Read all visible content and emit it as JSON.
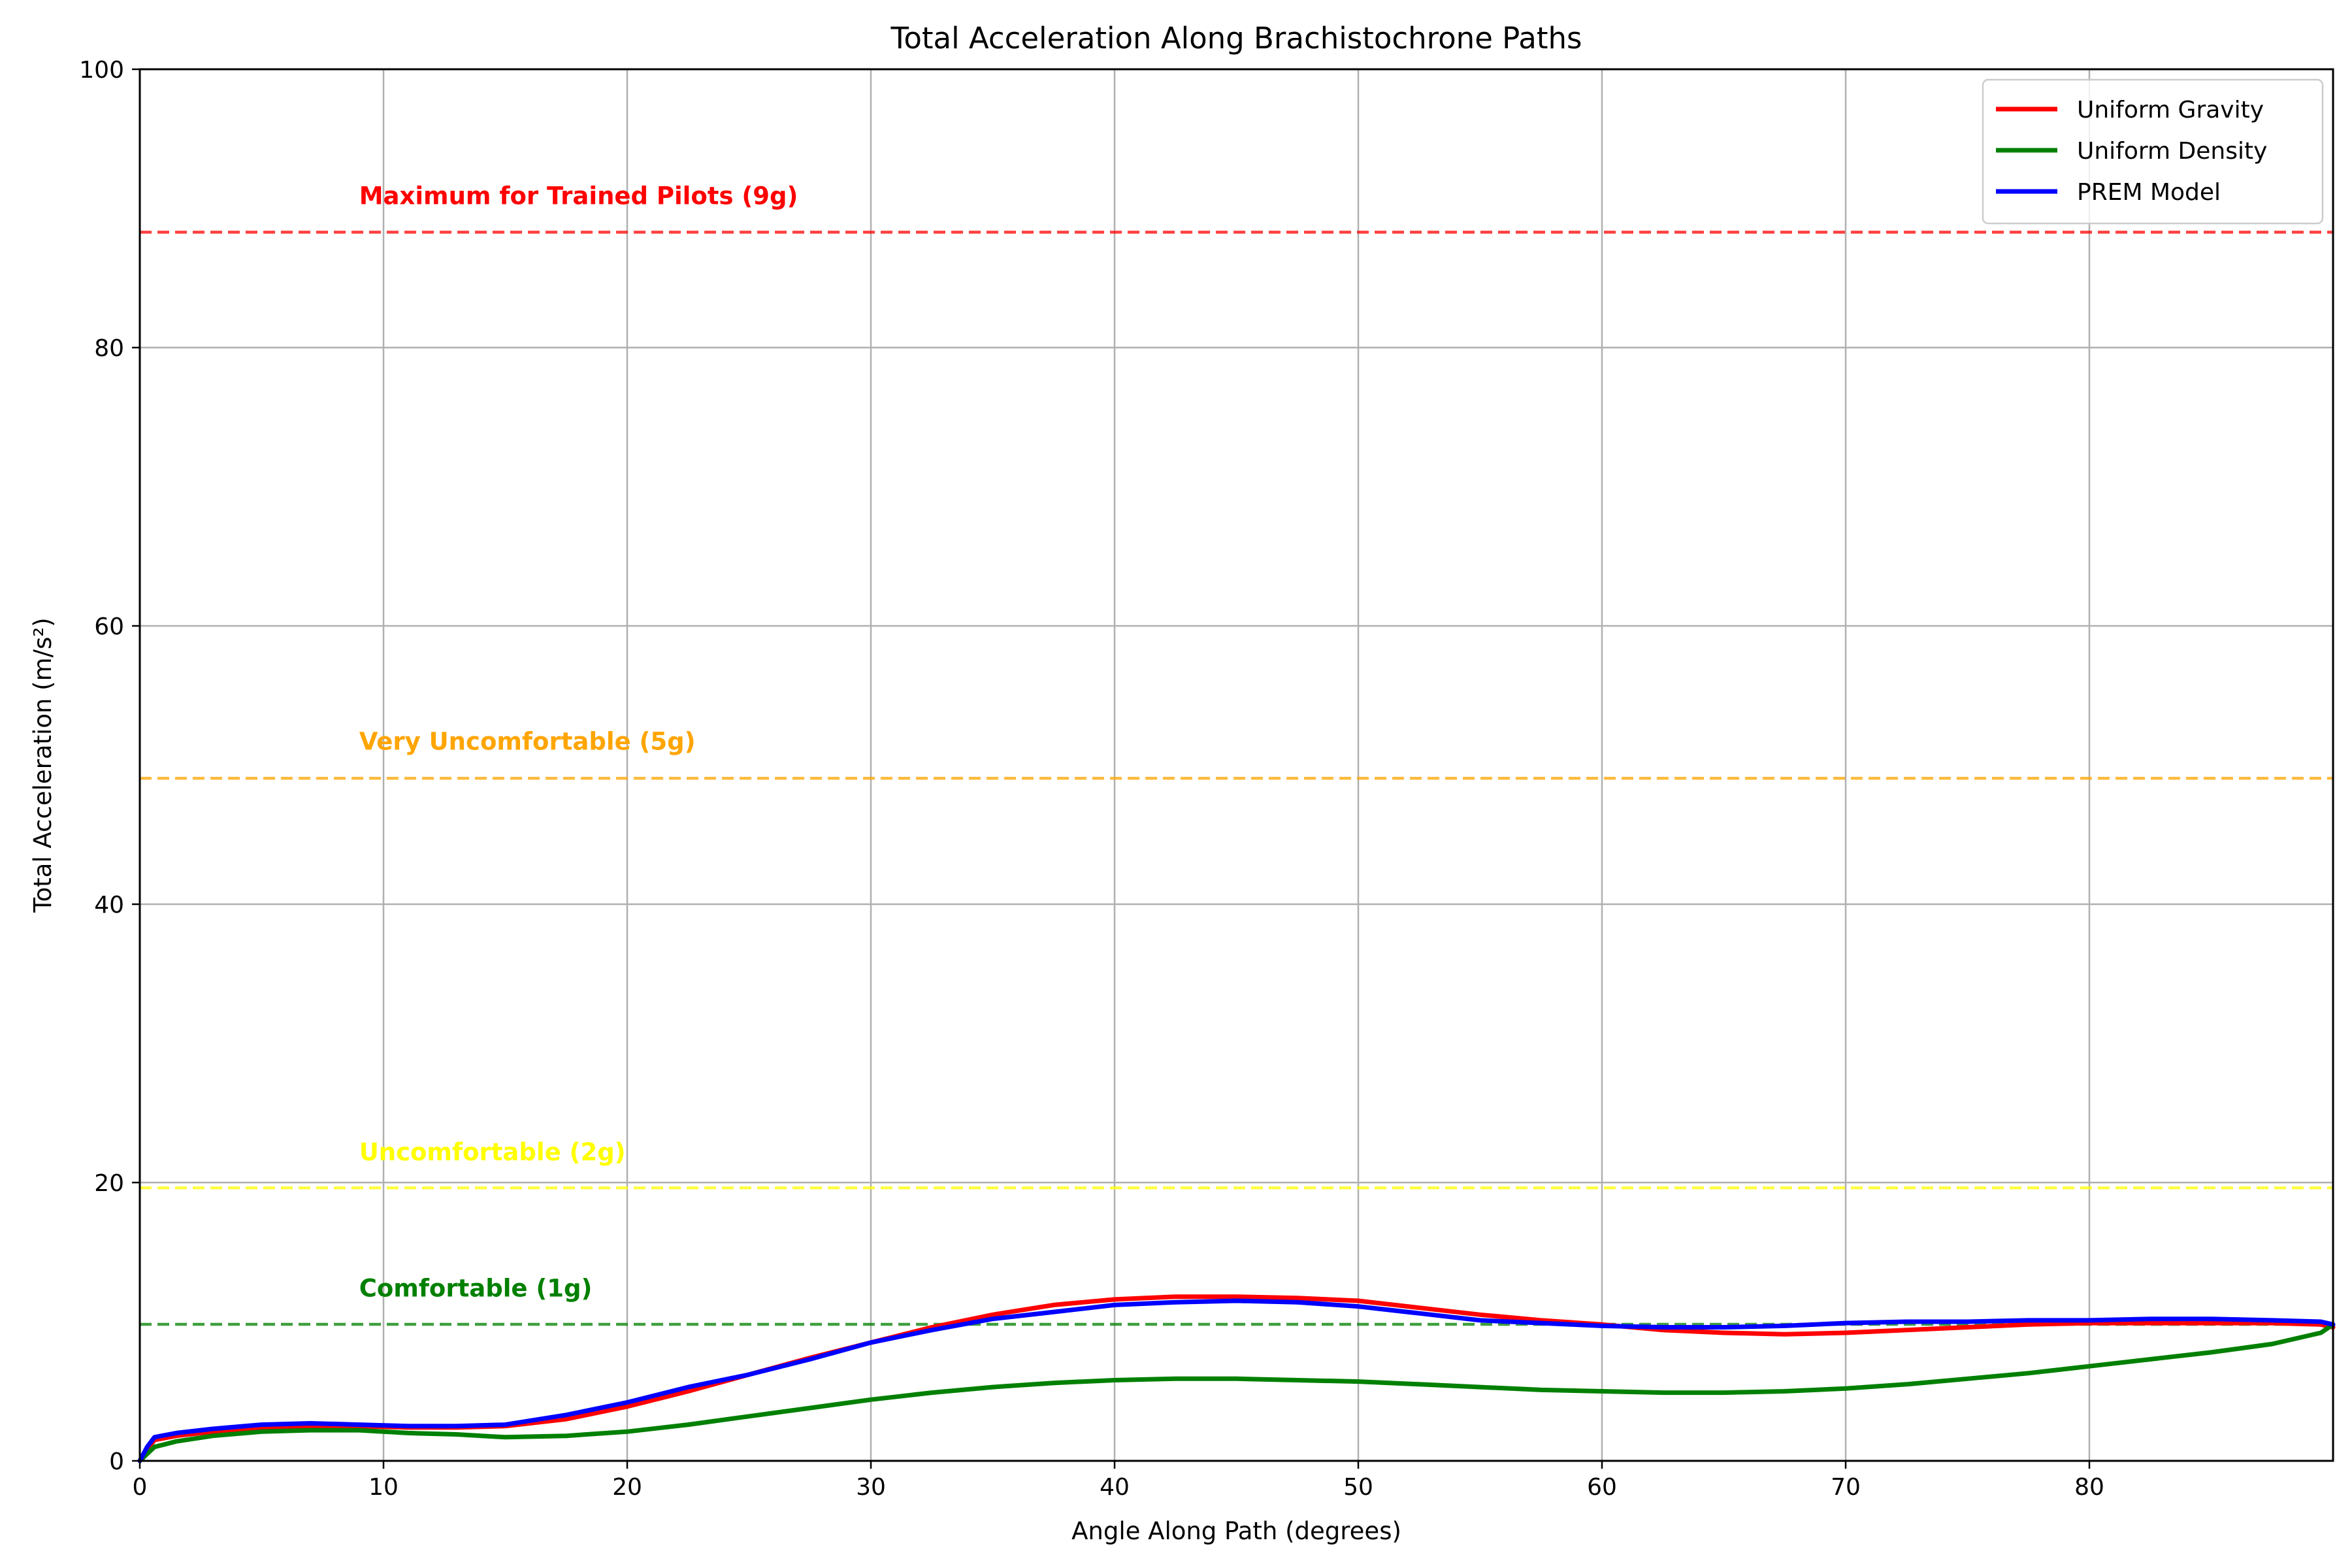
{
  "chart_data": {
    "type": "line",
    "title": "Total Acceleration Along Brachistochrone Paths",
    "xlabel": "Angle Along Path (degrees)",
    "ylabel": "Total Acceleration (m/s²)",
    "xlim": [
      0,
      90
    ],
    "ylim": [
      0,
      100
    ],
    "xticks": [
      0,
      10,
      20,
      30,
      40,
      50,
      60,
      70,
      80
    ],
    "yticks": [
      0,
      20,
      40,
      60,
      80,
      100
    ],
    "grid": true,
    "legend_position": "top-right",
    "series": [
      {
        "name": "Uniform Gravity",
        "color": "#ff0000",
        "x": [
          0,
          0.3,
          0.6,
          1.5,
          3,
          5,
          7,
          9,
          11,
          13,
          15,
          17.5,
          20,
          22.5,
          25,
          27.5,
          30,
          32.5,
          35,
          37.5,
          40,
          42.5,
          45,
          47.5,
          50,
          52.5,
          55,
          57.5,
          60,
          62.5,
          65,
          67.5,
          70,
          72.5,
          75,
          77.5,
          80,
          82.5,
          85,
          87.5,
          89.5,
          90
        ],
        "y": [
          0,
          0.8,
          1.5,
          1.8,
          2.1,
          2.4,
          2.5,
          2.5,
          2.4,
          2.4,
          2.5,
          3.0,
          3.9,
          5.0,
          6.2,
          7.4,
          8.5,
          9.6,
          10.5,
          11.2,
          11.6,
          11.8,
          11.8,
          11.7,
          11.5,
          11.0,
          10.5,
          10.1,
          9.8,
          9.4,
          9.2,
          9.1,
          9.2,
          9.4,
          9.6,
          9.8,
          9.9,
          9.9,
          9.9,
          9.9,
          9.8,
          9.6
        ]
      },
      {
        "name": "Uniform Density",
        "color": "#008000",
        "x": [
          0,
          0.3,
          0.6,
          1.5,
          3,
          5,
          7,
          9,
          11,
          13,
          15,
          17.5,
          20,
          22.5,
          25,
          27.5,
          30,
          32.5,
          35,
          37.5,
          40,
          42.5,
          45,
          47.5,
          50,
          52.5,
          55,
          57.5,
          60,
          62.5,
          65,
          67.5,
          70,
          72.5,
          75,
          77.5,
          80,
          82.5,
          85,
          87.5,
          89.5,
          90
        ],
        "y": [
          0,
          0.5,
          1.0,
          1.4,
          1.8,
          2.1,
          2.2,
          2.2,
          2.0,
          1.9,
          1.7,
          1.8,
          2.1,
          2.6,
          3.2,
          3.8,
          4.4,
          4.9,
          5.3,
          5.6,
          5.8,
          5.9,
          5.9,
          5.8,
          5.7,
          5.5,
          5.3,
          5.1,
          5.0,
          4.9,
          4.9,
          5.0,
          5.2,
          5.5,
          5.9,
          6.3,
          6.8,
          7.3,
          7.8,
          8.4,
          9.2,
          9.8
        ]
      },
      {
        "name": "PREM Model",
        "color": "#0000ff",
        "x": [
          0,
          0.3,
          0.6,
          1.5,
          3,
          5,
          7,
          9,
          11,
          13,
          15,
          17.5,
          20,
          22.5,
          25,
          27.5,
          30,
          32.5,
          35,
          37.5,
          40,
          42.5,
          45,
          47.5,
          50,
          52.5,
          55,
          57.5,
          60,
          62.5,
          65,
          67.5,
          70,
          72.5,
          75,
          77.5,
          80,
          82.5,
          85,
          87.5,
          89.5,
          90
        ],
        "y": [
          0,
          1.0,
          1.7,
          2.0,
          2.3,
          2.6,
          2.7,
          2.6,
          2.5,
          2.5,
          2.6,
          3.3,
          4.2,
          5.3,
          6.2,
          7.3,
          8.5,
          9.4,
          10.2,
          10.7,
          11.2,
          11.4,
          11.5,
          11.4,
          11.1,
          10.6,
          10.1,
          9.9,
          9.7,
          9.6,
          9.6,
          9.7,
          9.9,
          10.0,
          10.0,
          10.1,
          10.1,
          10.2,
          10.2,
          10.1,
          10.0,
          9.8
        ]
      }
    ],
    "reference_lines": [
      {
        "label": "Maximum for Trained Pilots (9g)",
        "y": 88.29,
        "color": "#ff0000",
        "label_x": 9,
        "label_y": 90.3
      },
      {
        "label": "Very Uncomfortable (5g)",
        "y": 49.05,
        "color": "#ffa500",
        "label_x": 9,
        "label_y": 51.1
      },
      {
        "label": "Uncomfortable (2g)",
        "y": 19.62,
        "color": "#ffff00",
        "label_x": 9,
        "label_y": 21.6
      },
      {
        "label": "Comfortable (1g)",
        "y": 9.81,
        "color": "#008000",
        "label_x": 9,
        "label_y": 11.8
      }
    ]
  }
}
